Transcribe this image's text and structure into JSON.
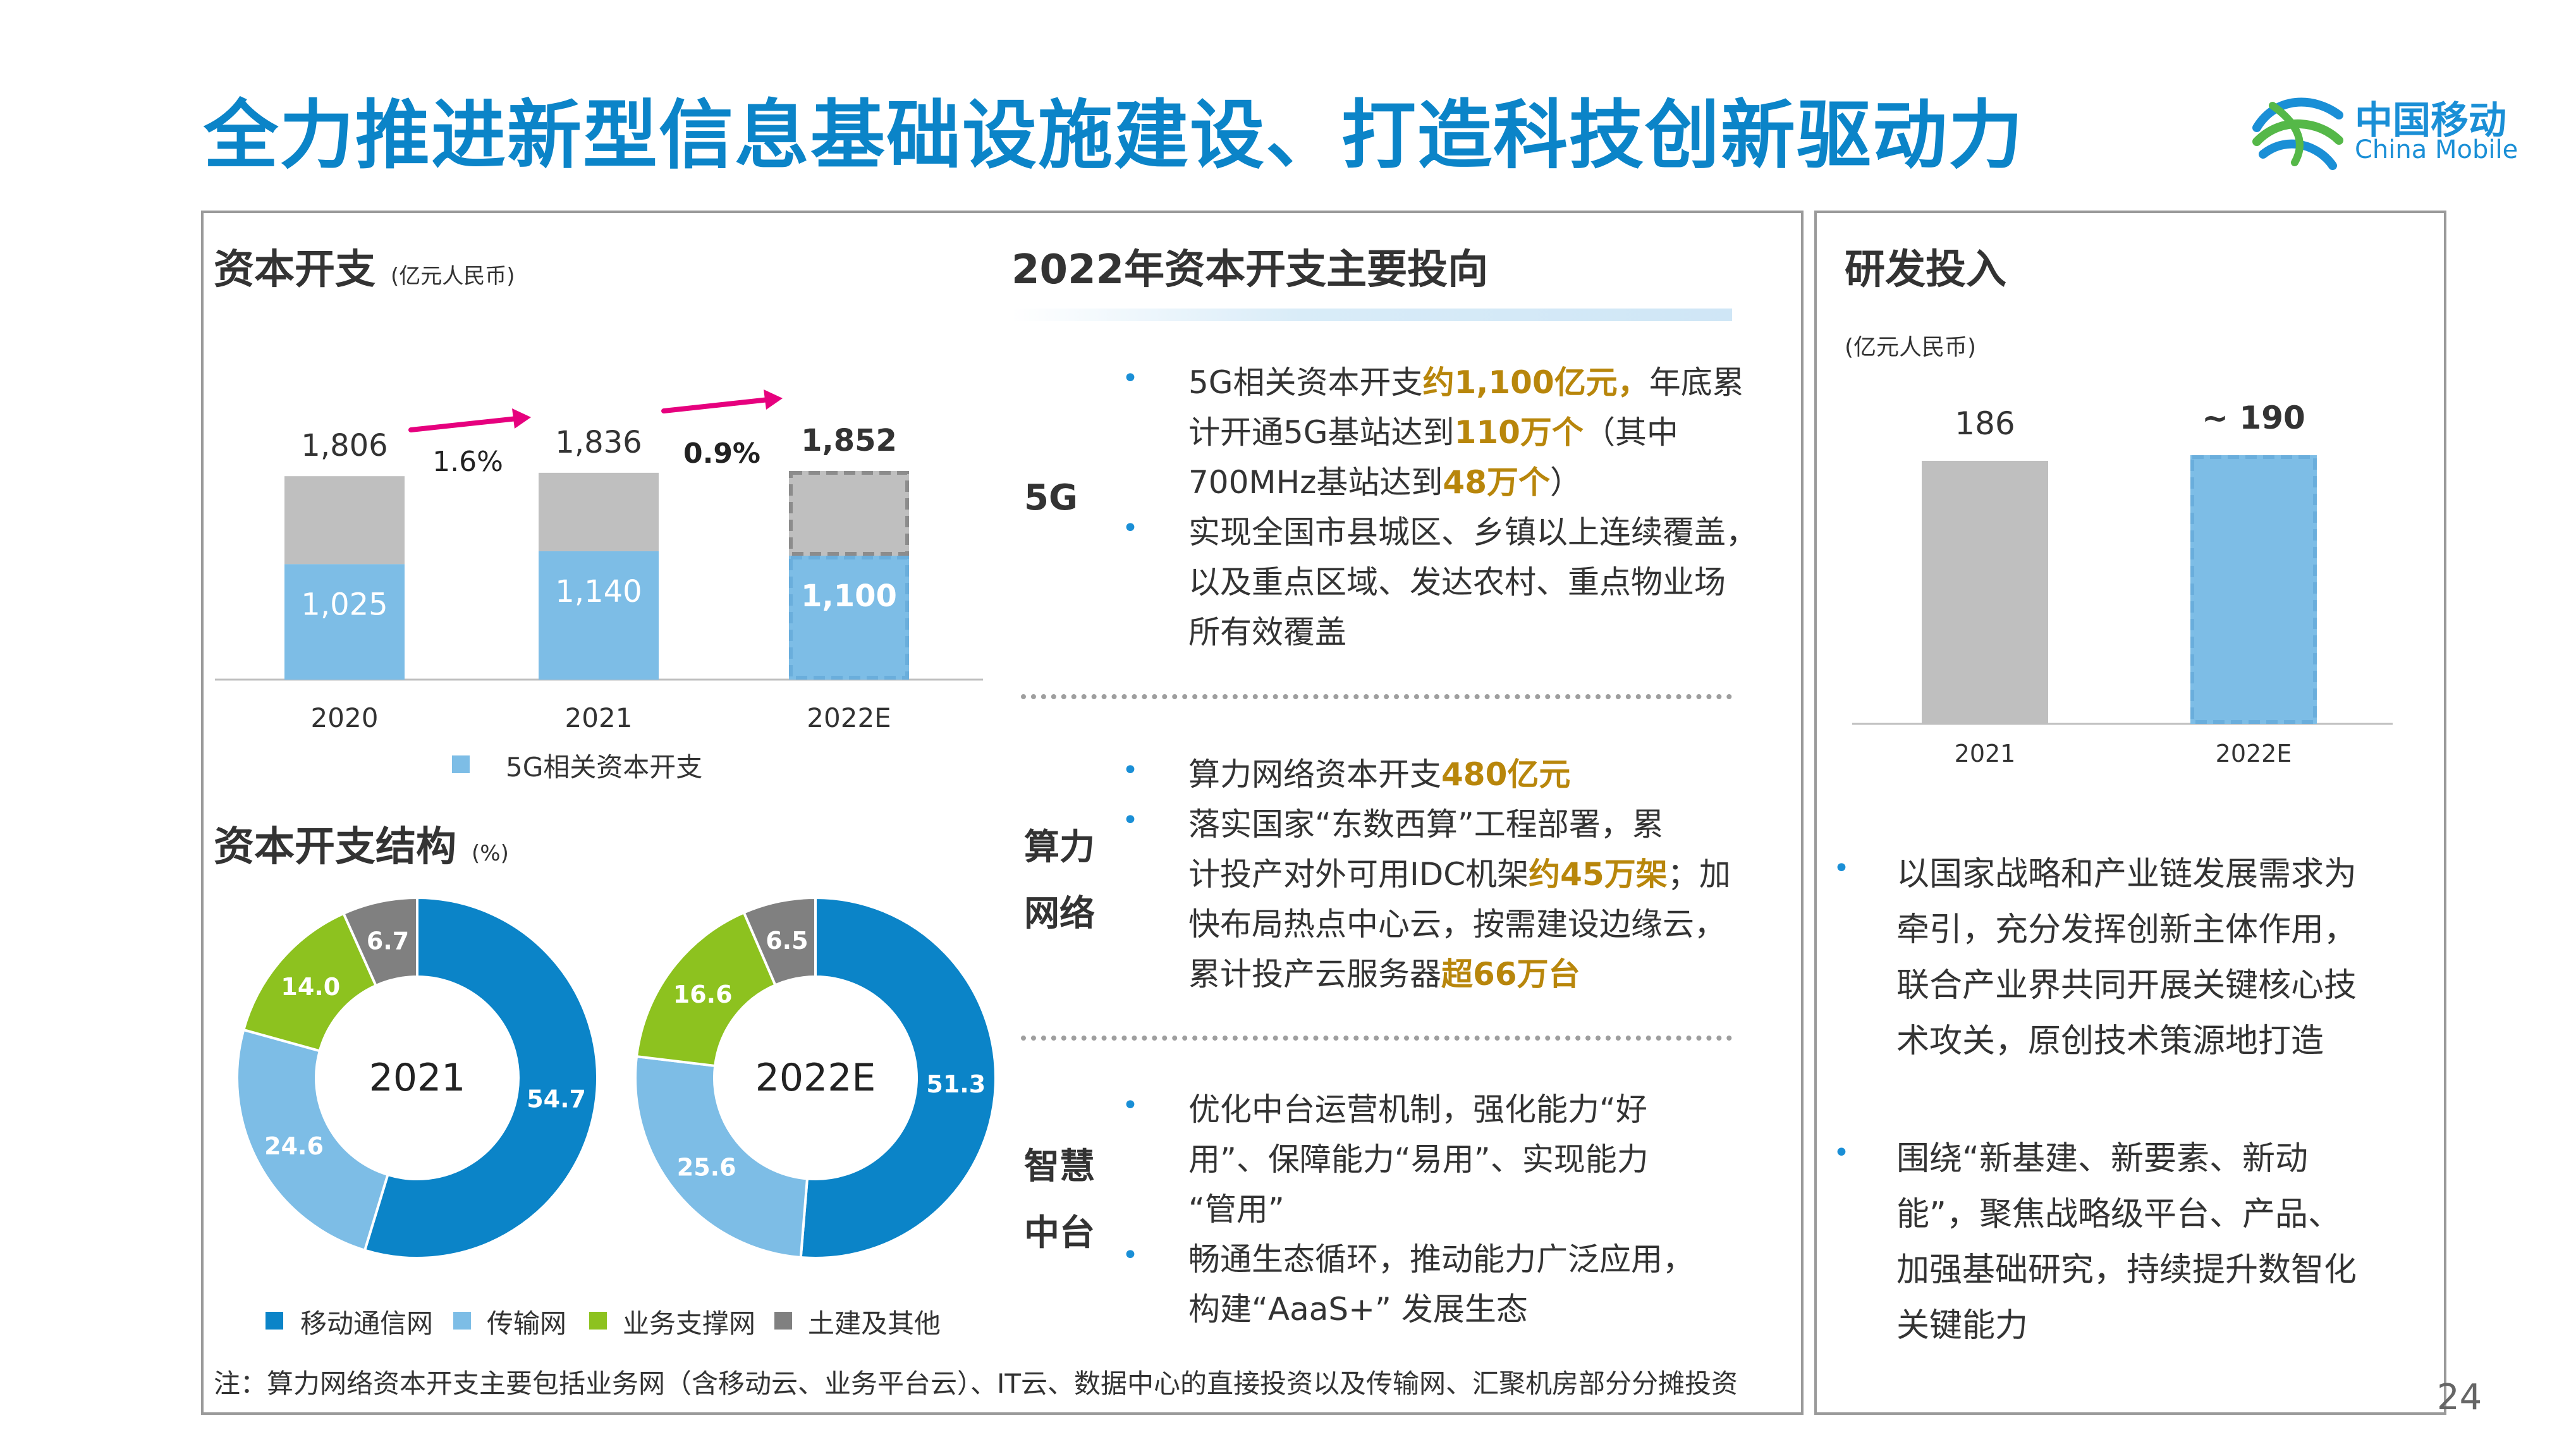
{
  "title": "全力推进新型信息基础设施建设、打造科技创新驱动力",
  "logo": {
    "cn": "中国移动",
    "en": "China Mobile"
  },
  "page_number": "24",
  "capex": {
    "title": "资本开支",
    "unit": "(亿元人民币)",
    "legend": "5G相关资本开支",
    "growth_2021": "1.6%",
    "growth_2022": "0.9%",
    "colors": {
      "total": "#bfbfbf",
      "fiveg": "#7dbde6",
      "arrow": "#e6007e"
    }
  },
  "structure": {
    "title": "资本开支结构",
    "unit": "(%)",
    "legend": [
      "移动通信网",
      "传输网",
      "业务支撑网",
      "土建及其他"
    ],
    "colors": [
      "#0b84c8",
      "#7dbde6",
      "#8dc21f",
      "#808080"
    ]
  },
  "invest": {
    "title": "2022年资本开支主要投向",
    "sections": [
      {
        "label": [
          "5G"
        ],
        "bullets": [
          [
            [
              {
                "t": "5G相关资本开支"
              },
              {
                "t": "约1,100亿元，",
                "h": true
              },
              {
                "t": "年底累"
              }
            ],
            [
              {
                "t": "计开通5G基站达到"
              },
              {
                "t": "110万个",
                "h": true
              },
              {
                "t": "（其中"
              }
            ],
            [
              {
                "t": "700MHz基站达到"
              },
              {
                "t": "48万个",
                "h": true
              },
              {
                "t": "）"
              }
            ]
          ],
          [
            [
              {
                "t": "实现全国市县城区、乡镇以上连续覆盖，"
              }
            ],
            [
              {
                "t": "以及重点区域、发达农村、重点物业场"
              }
            ],
            [
              {
                "t": "所有效覆盖"
              }
            ]
          ]
        ]
      },
      {
        "label": [
          "算力",
          "网络"
        ],
        "bullets": [
          [
            [
              {
                "t": "算力网络资本开支"
              },
              {
                "t": "480亿元",
                "h": true
              }
            ]
          ],
          [
            [
              {
                "t": "落实国家“东数西算”工程部署，累"
              }
            ],
            [
              {
                "t": "计投产对外可用IDC机架"
              },
              {
                "t": "约45万架",
                "h": true
              },
              {
                "t": "；加"
              }
            ],
            [
              {
                "t": "快布局热点中心云，按需建设边缘云，"
              }
            ],
            [
              {
                "t": "累计投产云服务器"
              },
              {
                "t": "超66万台",
                "h": true
              }
            ]
          ]
        ]
      },
      {
        "label": [
          "智慧",
          "中台"
        ],
        "bullets": [
          [
            [
              {
                "t": "优化中台运营机制，强化能力“好"
              }
            ],
            [
              {
                "t": "用”、保障能力“易用”、实现能力"
              }
            ],
            [
              {
                "t": "“管用”"
              }
            ]
          ],
          [
            [
              {
                "t": "畅通生态循环，推动能力广泛应用，"
              }
            ],
            [
              {
                "t": "构建“AaaS+” 发展生态"
              }
            ]
          ]
        ]
      }
    ]
  },
  "rnd": {
    "title": "研发投入",
    "unit": "(亿元人民币)",
    "bullets": [
      [
        "以国家战略和产业链发展需求为",
        "牵引，充分发挥创新主体作用，",
        "联合产业界共同开展关键核心技",
        "术攻关，原创技术策源地打造"
      ],
      [
        "围绕“新基建、新要素、新动",
        "能”，聚焦战略级平台、产品、",
        "加强基础研究，持续提升数智化",
        "关键能力"
      ]
    ]
  },
  "note": "注：算力网络资本开支主要包括业务网（含移动云、业务平台云）、IT云、数据中心的直接投资以及传输网、汇聚机房部分分摊投资",
  "chart_data": [
    {
      "type": "bar",
      "title": "资本开支",
      "categories": [
        "2020",
        "2021",
        "2022E"
      ],
      "series": [
        {
          "name": "",
          "values": [
            1806,
            1836,
            1852
          ],
          "labels": [
            "1,806",
            "1,836",
            "1,852"
          ]
        },
        {
          "name": "5G相关资本开支",
          "values": [
            1025,
            1140,
            1100
          ],
          "labels": [
            "1,025",
            "1,140",
            "1,100"
          ]
        }
      ],
      "ylim": [
        0,
        1852
      ]
    },
    {
      "type": "pie",
      "title": "资本开支结构",
      "center_label": "2021",
      "categories": [
        "移动通信网",
        "传输网",
        "业务支撑网",
        "土建及其他"
      ],
      "values": [
        54.7,
        24.6,
        14.0,
        6.7
      ],
      "labels": [
        "54.7",
        "24.6",
        "14.0",
        "6.7"
      ]
    },
    {
      "type": "pie",
      "title": "资本开支结构",
      "center_label": "2022E",
      "categories": [
        "移动通信网",
        "传输网",
        "业务支撑网",
        "土建及其他"
      ],
      "values": [
        51.3,
        25.6,
        16.6,
        6.5
      ],
      "labels": [
        "51.3",
        "25.6",
        "16.6",
        "6.5"
      ]
    },
    {
      "type": "bar",
      "title": "研发投入",
      "categories": [
        "2021",
        "2022E"
      ],
      "values": [
        186,
        190
      ],
      "labels": [
        "186",
        "~ 190"
      ],
      "colors": [
        "#bfbfbf",
        "#7dbde6"
      ],
      "ylim": [
        0,
        190
      ]
    }
  ]
}
